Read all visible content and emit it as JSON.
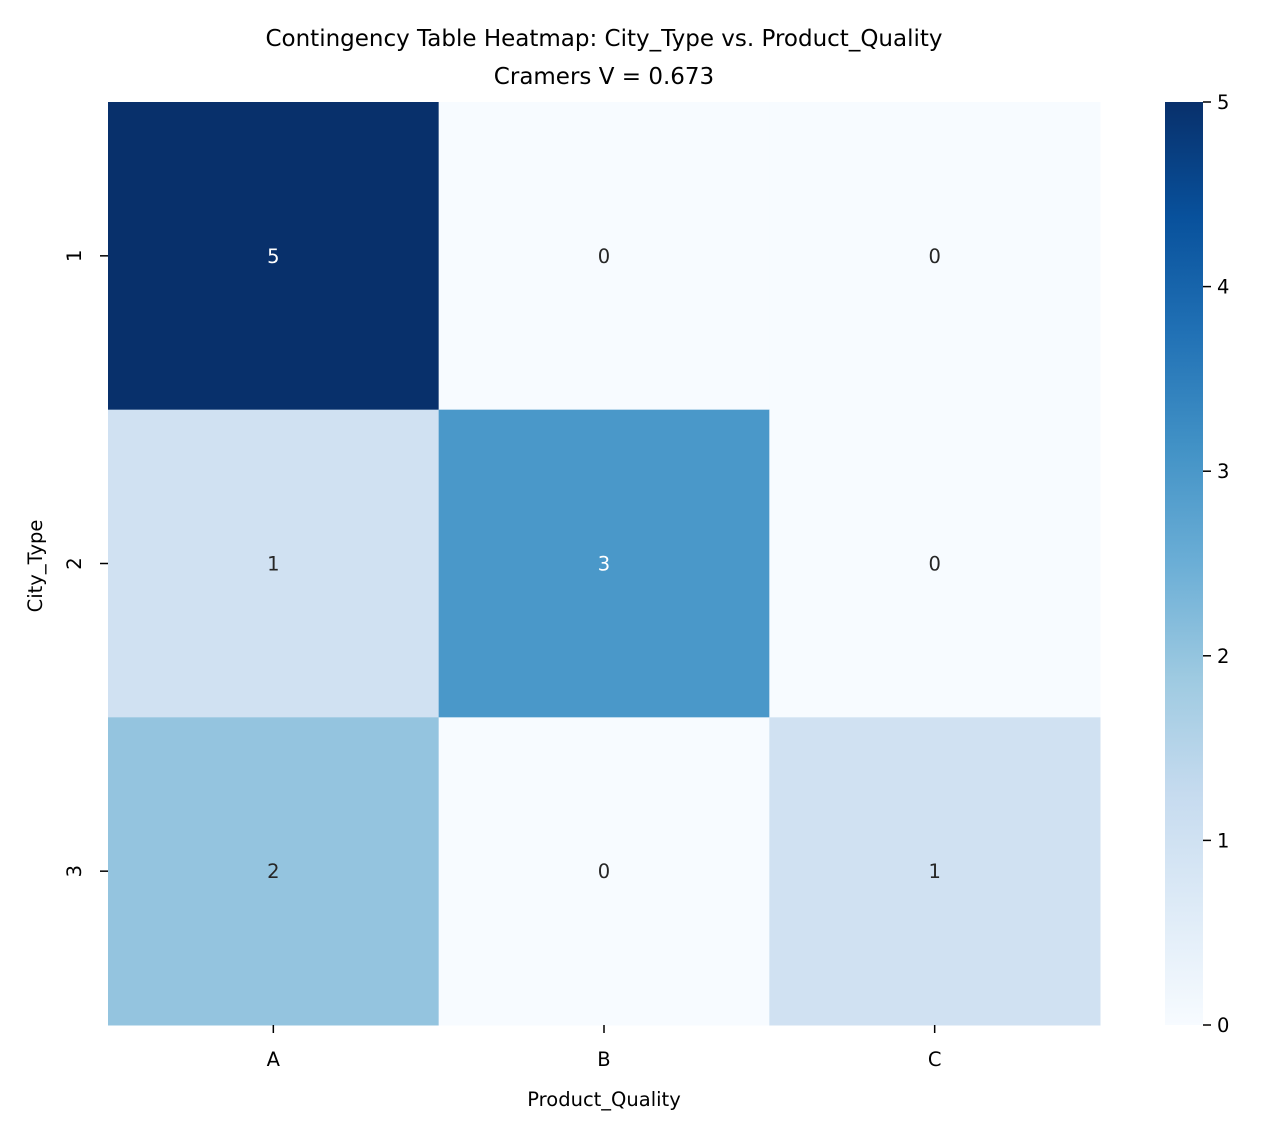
{
  "chart_data": {
    "type": "heatmap",
    "title": "Contingency Table Heatmap: City_Type vs. Product_Quality",
    "subtitle": "Cramers V = 0.673",
    "xlabel": "Product_Quality",
    "ylabel": "City_Type",
    "x_categories": [
      "A",
      "B",
      "C"
    ],
    "y_categories": [
      "1",
      "2",
      "3"
    ],
    "values": [
      [
        5,
        0,
        0
      ],
      [
        1,
        3,
        0
      ],
      [
        2,
        0,
        1
      ]
    ],
    "cell_labels": [
      [
        "5",
        "0",
        "0"
      ],
      [
        "1",
        "3",
        "0"
      ],
      [
        "2",
        "0",
        "1"
      ]
    ],
    "colorbar": {
      "vmin": 0,
      "vmax": 5,
      "ticks": [
        0,
        1,
        2,
        3,
        4,
        5
      ],
      "tick_labels": [
        "0",
        "1",
        "2",
        "3",
        "4",
        "5"
      ]
    },
    "colormap": "Blues",
    "colormap_stops": [
      "#f7fbff",
      "#deebf7",
      "#c6dbef",
      "#9ecae1",
      "#6baed6",
      "#4292c6",
      "#2171b5",
      "#08519c",
      "#08306b"
    ],
    "label_color_dark": "#262626",
    "label_color_light": "#ffffff",
    "grid": false
  }
}
